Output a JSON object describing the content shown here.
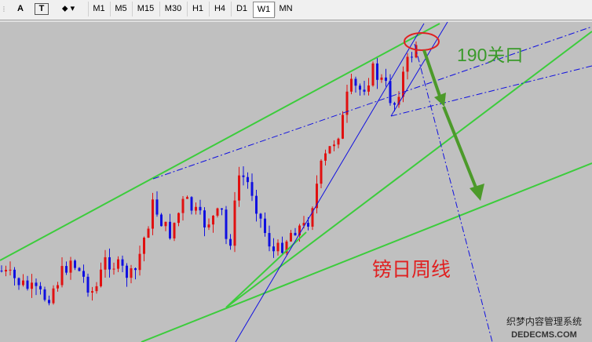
{
  "toolbar": {
    "text_tool": "A",
    "timeframes": [
      "M1",
      "M5",
      "M15",
      "M30",
      "H1",
      "H4",
      "D1",
      "W1",
      "MN"
    ],
    "active": "W1"
  },
  "annotations": {
    "level": "190关口",
    "caption": "镑日周线"
  },
  "watermark": {
    "line1": "织梦内容管理系统",
    "line2": "DEDECMS.COM"
  }
}
